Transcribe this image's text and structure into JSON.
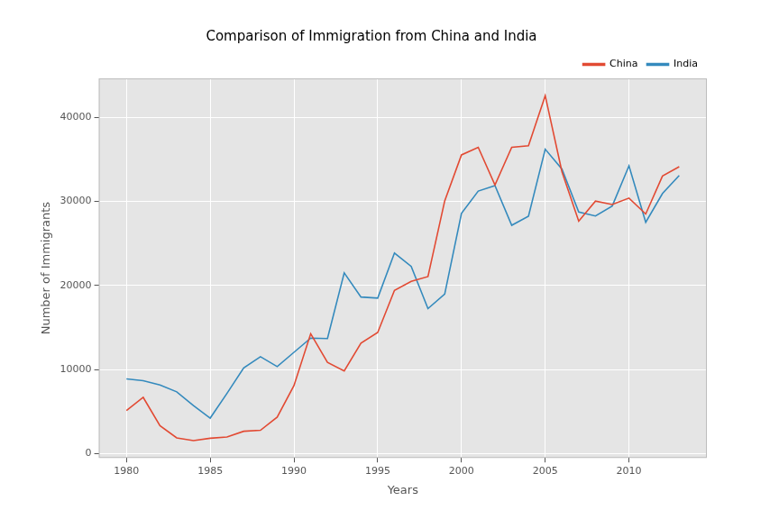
{
  "chart_data": {
    "type": "line",
    "title": "Comparison of Immigration from China and India",
    "x_label": "Years",
    "y_label": "Number of Immigrants",
    "x": [
      1980,
      1981,
      1982,
      1983,
      1984,
      1985,
      1986,
      1987,
      1988,
      1989,
      1990,
      1991,
      1992,
      1993,
      1994,
      1995,
      1996,
      1997,
      1998,
      1999,
      2000,
      2001,
      2002,
      2003,
      2004,
      2005,
      2006,
      2007,
      2008,
      2009,
      2010,
      2011,
      2012,
      2013
    ],
    "series": [
      {
        "name": "China",
        "color": "#E24A33",
        "values": [
          5123,
          6682,
          3308,
          1863,
          1527,
          1816,
          1960,
          2643,
          2758,
          4323,
          8076,
          14255,
          10846,
          9817,
          13128,
          14398,
          19415,
          20475,
          21049,
          30069,
          35529,
          36434,
          31961,
          36439,
          36619,
          42584,
          33518,
          27642,
          30037,
          29622,
          30391,
          28502,
          33024,
          34129
        ]
      },
      {
        "name": "India",
        "color": "#348ABD",
        "values": [
          8880,
          8670,
          8147,
          7338,
          5704,
          4211,
          7150,
          10189,
          11522,
          10343,
          12041,
          13734,
          13673,
          21496,
          18620,
          18489,
          23859,
          22268,
          17241,
          18974,
          28572,
          31223,
          31889,
          27155,
          28235,
          36210,
          33848,
          28742,
          28261,
          29456,
          34235,
          27509,
          30933,
          33087
        ]
      }
    ],
    "xlim": [
      1978.35,
      2014.65
    ],
    "xticks": [
      1980,
      1985,
      1990,
      1995,
      2000,
      2005,
      2010
    ],
    "ylim": [
      -526,
      44637
    ],
    "yticks": [
      0,
      10000,
      20000,
      30000,
      40000
    ],
    "grid": true,
    "legend": "upper right"
  }
}
